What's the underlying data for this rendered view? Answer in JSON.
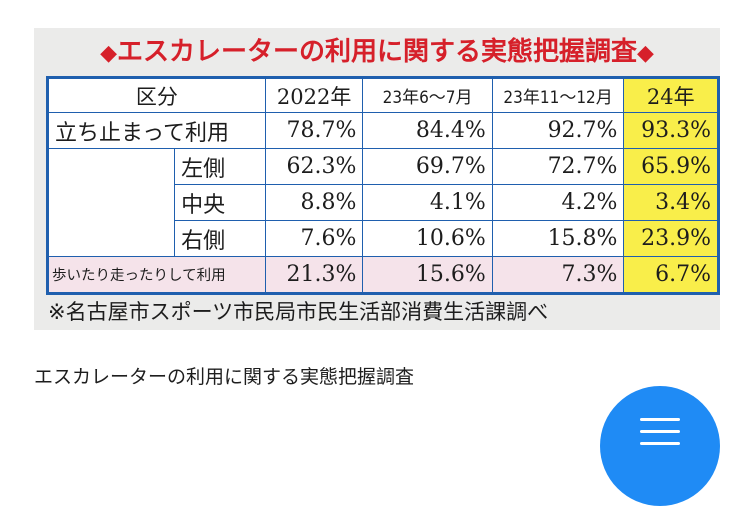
{
  "figure": {
    "title_marker_left": "◆",
    "title": "エスカレーターの利用に関する実態把握調査",
    "title_marker_right": "◆",
    "table": {
      "header": {
        "category": "区分",
        "col_2022": "2022年",
        "col_23_jun_jul": "23年6～7月",
        "col_23_nov_dec": "23年11～12月",
        "col_24": "24年"
      },
      "rows": [
        {
          "label": "立ち止まって利用",
          "v2022": "78.7%",
          "v23a": "84.4%",
          "v23b": "92.7%",
          "v24": "93.3%"
        },
        {
          "label": "左側",
          "v2022": "62.3%",
          "v23a": "69.7%",
          "v23b": "72.7%",
          "v24": "65.9%"
        },
        {
          "label": "中央",
          "v2022": "8.8%",
          "v23a": "4.1%",
          "v23b": "4.2%",
          "v24": "3.4%"
        },
        {
          "label": "右側",
          "v2022": "7.6%",
          "v23a": "10.6%",
          "v23b": "15.8%",
          "v24": "23.9%"
        },
        {
          "label": "歩いたり走ったりして利用",
          "v2022": "21.3%",
          "v23a": "15.6%",
          "v23b": "7.3%",
          "v24": "6.7%"
        }
      ]
    },
    "note": "※名古屋市スポーツ市民局市民生活部消費生活課調べ"
  },
  "caption": "エスカレーターの利用に関する実態把握調査",
  "menu_button": {
    "icon": "hamburger-menu-icon",
    "color": "#1f8bf5"
  },
  "colors": {
    "title_red": "#d6202a",
    "table_blue": "#1f5fae",
    "highlight_yellow": "#f9ee4a",
    "highlight_pink": "#f5e3ea"
  }
}
